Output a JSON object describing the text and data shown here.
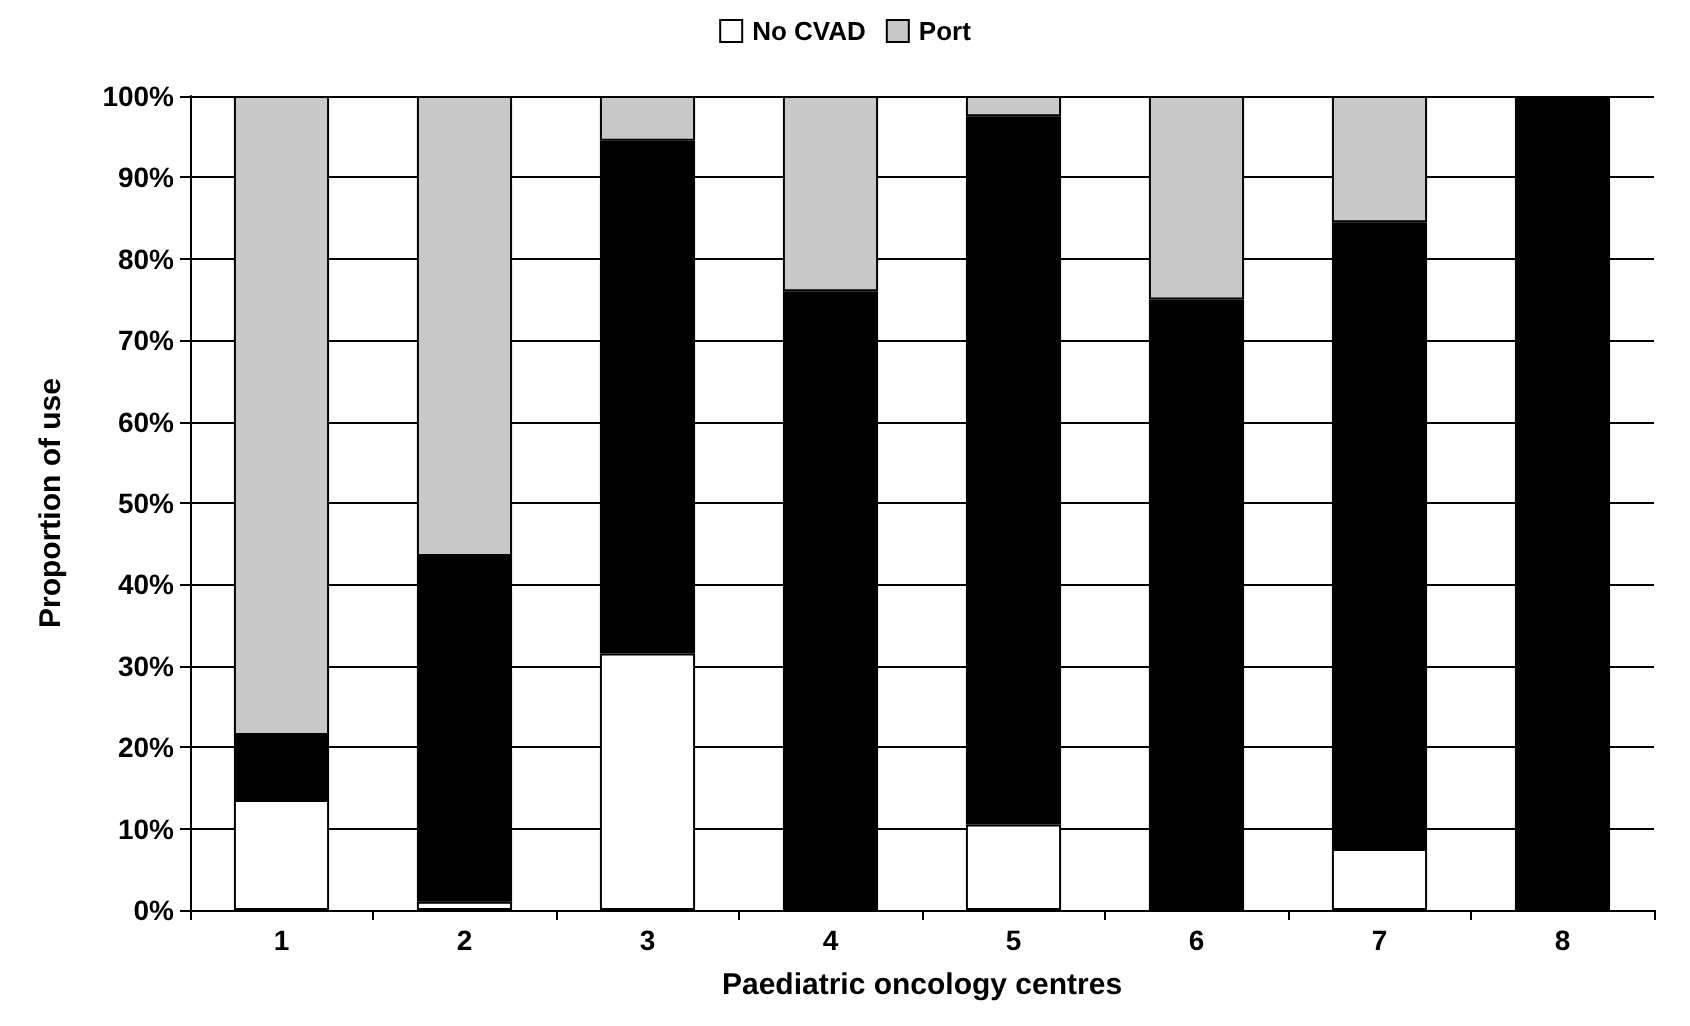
{
  "chart_data": {
    "type": "bar",
    "stacked": true,
    "xlabel": "Paediatric oncology centres",
    "ylabel": "Proportion of use",
    "categories": [
      "1",
      "2",
      "3",
      "4",
      "5",
      "6",
      "7",
      "8"
    ],
    "series": [
      {
        "name": "No CVAD",
        "color": "#ffffff",
        "values": [
          13.5,
          1,
          31.5,
          0,
          10.5,
          0,
          7.5,
          0
        ]
      },
      {
        "color": "#000000",
        "values": [
          8,
          42.5,
          63,
          76,
          87,
          75,
          77,
          100
        ]
      },
      {
        "name": "Port",
        "color": "#c8c8c8",
        "values": [
          78.5,
          56.5,
          5.5,
          24,
          2.5,
          25,
          15.5,
          0
        ]
      }
    ],
    "ylim": [
      0,
      100
    ],
    "yticks": [
      {
        "value": 0,
        "label": "0%"
      },
      {
        "value": 10,
        "label": "10%"
      },
      {
        "value": 20,
        "label": "20%"
      },
      {
        "value": 30,
        "label": "30%"
      },
      {
        "value": 40,
        "label": "40%"
      },
      {
        "value": 50,
        "label": "50%"
      },
      {
        "value": 60,
        "label": "60%"
      },
      {
        "value": 70,
        "label": "70%"
      },
      {
        "value": 80,
        "label": "80%"
      },
      {
        "value": 90,
        "label": "90%"
      },
      {
        "value": 100,
        "label": "100%"
      }
    ],
    "grid": "y",
    "legend": "top"
  }
}
